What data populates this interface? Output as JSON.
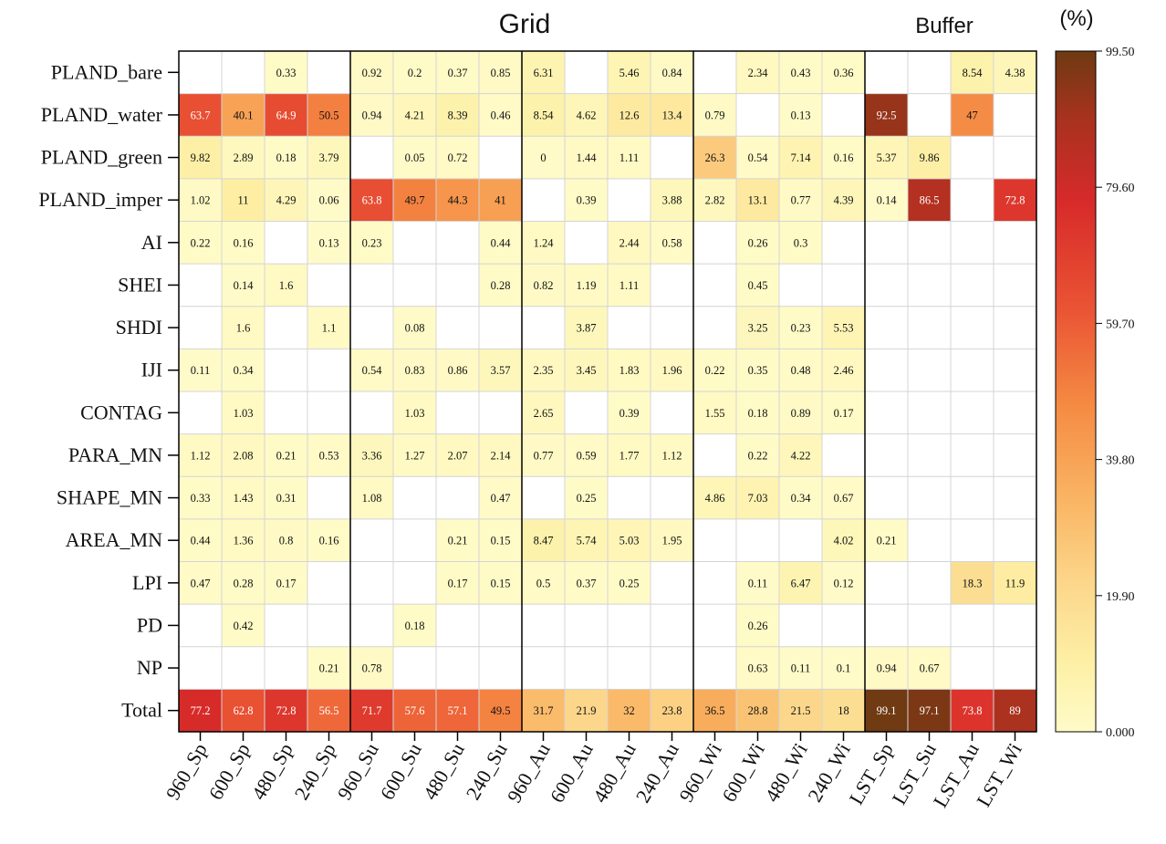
{
  "chart_data": {
    "type": "heatmap",
    "title_grid": "Grid",
    "title_buffer": "Buffer",
    "colorbar_label": "(%)",
    "colorbar_ticks": [
      "99.50",
      "79.60",
      "59.70",
      "39.80",
      "19.90",
      "0.000"
    ],
    "colorbar_range": [
      0,
      99.5
    ],
    "rows": [
      "PLAND_bare",
      "PLAND_water",
      "PLAND_green",
      "PLAND_imper",
      "AI",
      "SHEI",
      "SHDI",
      "IJI",
      "CONTAG",
      "PARA_MN",
      "SHAPE_MN",
      "AREA_MN",
      "LPI",
      "PD",
      "NP",
      "Total"
    ],
    "columns": [
      "960_Sp",
      "600_Sp",
      "480_Sp",
      "240_Sp",
      "960_Su",
      "600_Su",
      "480_Su",
      "240_Su",
      "960_Au",
      "600_Au",
      "480_Au",
      "240_Au",
      "960_Wi",
      "600_Wi",
      "480_Wi",
      "240_Wi",
      "LST_Sp",
      "LST_Su",
      "LST_Au",
      "LST_Wi"
    ],
    "values": [
      [
        null,
        null,
        "0.33",
        null,
        "0.92",
        "0.2",
        "0.37",
        "0.85",
        "6.31",
        null,
        "5.46",
        "0.84",
        null,
        "2.34",
        "0.43",
        "0.36",
        null,
        null,
        "8.54",
        "4.38"
      ],
      [
        "63.7",
        "40.1",
        "64.9",
        "50.5",
        "0.94",
        "4.21",
        "8.39",
        "0.46",
        "8.54",
        "4.62",
        "12.6",
        "13.4",
        "0.79",
        null,
        "0.13",
        null,
        "92.5",
        null,
        "47",
        null
      ],
      [
        "9.82",
        "2.89",
        "0.18",
        "3.79",
        null,
        "0.05",
        "0.72",
        null,
        "0",
        "1.44",
        "1.11",
        null,
        "26.3",
        "0.54",
        "7.14",
        "0.16",
        "5.37",
        "9.86",
        null,
        null
      ],
      [
        "1.02",
        "11",
        "4.29",
        "0.06",
        "63.8",
        "49.7",
        "44.3",
        "41",
        null,
        "0.39",
        null,
        "3.88",
        "2.82",
        "13.1",
        "0.77",
        "4.39",
        "0.14",
        "86.5",
        null,
        "72.8"
      ],
      [
        "0.22",
        "0.16",
        null,
        "0.13",
        "0.23",
        null,
        null,
        "0.44",
        "1.24",
        null,
        "2.44",
        "0.58",
        null,
        "0.26",
        "0.3",
        null,
        null,
        null,
        null,
        null
      ],
      [
        null,
        "0.14",
        "1.6",
        null,
        null,
        null,
        null,
        "0.28",
        "0.82",
        "1.19",
        "1.11",
        null,
        null,
        "0.45",
        null,
        null,
        null,
        null,
        null,
        null
      ],
      [
        null,
        "1.6",
        null,
        "1.1",
        null,
        "0.08",
        null,
        null,
        null,
        "3.87",
        null,
        null,
        null,
        "3.25",
        "0.23",
        "5.53",
        null,
        null,
        null,
        null
      ],
      [
        "0.11",
        "0.34",
        null,
        null,
        "0.54",
        "0.83",
        "0.86",
        "3.57",
        "2.35",
        "3.45",
        "1.83",
        "1.96",
        "0.22",
        "0.35",
        "0.48",
        "2.46",
        null,
        null,
        null,
        null
      ],
      [
        null,
        "1.03",
        null,
        null,
        null,
        "1.03",
        null,
        null,
        "2.65",
        null,
        "0.39",
        null,
        "1.55",
        "0.18",
        "0.89",
        "0.17",
        null,
        null,
        null,
        null
      ],
      [
        "1.12",
        "2.08",
        "0.21",
        "0.53",
        "3.36",
        "1.27",
        "2.07",
        "2.14",
        "0.77",
        "0.59",
        "1.77",
        "1.12",
        null,
        "0.22",
        "4.22",
        null,
        null,
        null,
        null,
        null
      ],
      [
        "0.33",
        "1.43",
        "0.31",
        null,
        "1.08",
        null,
        null,
        "0.47",
        null,
        "0.25",
        null,
        null,
        "4.86",
        "7.03",
        "0.34",
        "0.67",
        null,
        null,
        null,
        null
      ],
      [
        "0.44",
        "1.36",
        "0.8",
        "0.16",
        null,
        null,
        "0.21",
        "0.15",
        "8.47",
        "5.74",
        "5.03",
        "1.95",
        null,
        null,
        null,
        "4.02",
        "0.21",
        null,
        null,
        null
      ],
      [
        "0.47",
        "0.28",
        "0.17",
        null,
        null,
        null,
        "0.17",
        "0.15",
        "0.5",
        "0.37",
        "0.25",
        null,
        null,
        "0.11",
        "6.47",
        "0.12",
        null,
        null,
        "18.3",
        "11.9"
      ],
      [
        null,
        "0.42",
        null,
        null,
        null,
        "0.18",
        null,
        null,
        null,
        null,
        null,
        null,
        null,
        "0.26",
        null,
        null,
        null,
        null,
        null,
        null
      ],
      [
        null,
        null,
        null,
        "0.21",
        "0.78",
        null,
        null,
        null,
        null,
        null,
        null,
        null,
        null,
        "0.63",
        "0.11",
        "0.1",
        "0.94",
        "0.67",
        null,
        null
      ],
      [
        "77.2",
        "62.8",
        "72.8",
        "56.5",
        "71.7",
        "57.6",
        "57.1",
        "49.5",
        "31.7",
        "21.9",
        "32",
        "23.8",
        "36.5",
        "28.8",
        "21.5",
        "18",
        "99.1",
        "97.1",
        "73.8",
        "89"
      ]
    ]
  }
}
